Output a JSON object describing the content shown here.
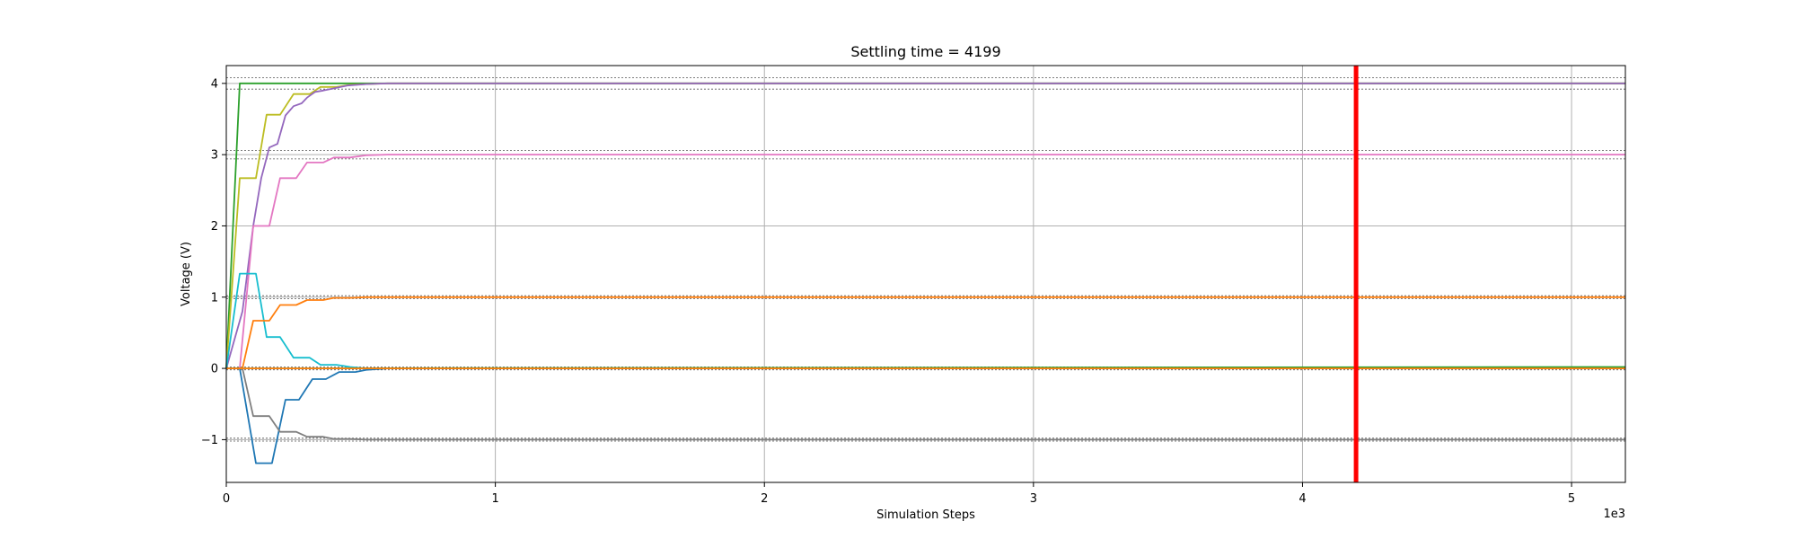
{
  "chart_data": {
    "type": "line",
    "title": "Settling time = 4199",
    "xlabel": "Simulation Steps",
    "ylabel": "Voltage (V)",
    "x_offset_label": "1e3",
    "xlim": [
      0,
      5200
    ],
    "ylim": [
      -1.6,
      4.25
    ],
    "xticks": [
      0,
      1000,
      2000,
      3000,
      4000,
      5000
    ],
    "xtick_labels": [
      "0",
      "1",
      "2",
      "3",
      "4",
      "5"
    ],
    "yticks": [
      -1,
      0,
      1,
      2,
      3,
      4
    ],
    "ytick_labels": [
      "−1",
      "0",
      "1",
      "2",
      "3",
      "4"
    ],
    "grid": true,
    "settling_time": 4199,
    "marker_color": "#ff0000",
    "tolerance_bands": [
      {
        "target": 4,
        "lower": 3.92,
        "upper": 4.08
      },
      {
        "target": 3,
        "lower": 2.94,
        "upper": 3.06
      },
      {
        "target": 1,
        "lower": 0.98,
        "upper": 1.02
      },
      {
        "target": 0,
        "lower": -0.02,
        "upper": 0.02
      },
      {
        "target": -1,
        "lower": -1.02,
        "upper": -0.98
      }
    ],
    "series": [
      {
        "color": "#2ca02c",
        "x": [
          0,
          50,
          5200
        ],
        "y": [
          0,
          4.0,
          4.0
        ]
      },
      {
        "color": "#bcbd22",
        "x": [
          0,
          50,
          110,
          150,
          200,
          250,
          310,
          350,
          410,
          460,
          520,
          600,
          5200
        ],
        "y": [
          0,
          2.67,
          2.67,
          3.56,
          3.56,
          3.85,
          3.85,
          3.95,
          3.95,
          3.98,
          3.99,
          4.0,
          4.0
        ]
      },
      {
        "color": "#9467bd",
        "x": [
          0,
          60,
          100,
          130,
          160,
          190,
          220,
          250,
          280,
          300,
          330,
          360,
          400,
          450,
          520,
          600,
          5200
        ],
        "y": [
          0,
          0.8,
          2.0,
          2.67,
          3.1,
          3.15,
          3.55,
          3.68,
          3.72,
          3.8,
          3.88,
          3.9,
          3.93,
          3.97,
          3.99,
          4.0,
          4.0
        ]
      },
      {
        "color": "#e377c2",
        "x": [
          0,
          50,
          100,
          160,
          200,
          260,
          300,
          360,
          400,
          460,
          520,
          600,
          5200
        ],
        "y": [
          0,
          0,
          2.0,
          2.0,
          2.67,
          2.67,
          2.89,
          2.89,
          2.96,
          2.96,
          2.99,
          3.0,
          3.0
        ]
      },
      {
        "color": "#17becf",
        "x": [
          0,
          50,
          110,
          150,
          200,
          250,
          310,
          350,
          410,
          460,
          520,
          600,
          5200
        ],
        "y": [
          0,
          1.33,
          1.33,
          0.44,
          0.44,
          0.15,
          0.15,
          0.05,
          0.05,
          0.02,
          0.0,
          0.0,
          0.0
        ]
      },
      {
        "color": "#ff7f0e",
        "x": [
          0,
          60,
          100,
          160,
          200,
          260,
          300,
          360,
          400,
          460,
          520,
          600,
          5200
        ],
        "y": [
          0,
          0,
          0.67,
          0.67,
          0.89,
          0.89,
          0.96,
          0.96,
          0.99,
          0.99,
          1.0,
          1.0,
          1.0
        ]
      },
      {
        "color": "#1f77b4",
        "x": [
          0,
          50,
          110,
          170,
          220,
          270,
          320,
          370,
          420,
          480,
          520,
          600,
          5200
        ],
        "y": [
          0,
          0,
          -1.33,
          -1.33,
          -0.44,
          -0.44,
          -0.15,
          -0.15,
          -0.05,
          -0.05,
          -0.02,
          0.0,
          0.0
        ]
      },
      {
        "color": "#7f7f7f",
        "x": [
          0,
          60,
          100,
          160,
          200,
          260,
          300,
          360,
          400,
          460,
          520,
          600,
          5200
        ],
        "y": [
          0,
          0,
          -0.67,
          -0.67,
          -0.89,
          -0.89,
          -0.96,
          -0.96,
          -0.99,
          -0.99,
          -1.0,
          -1.0,
          -1.0
        ]
      },
      {
        "color": "#2ca02c",
        "x": [
          0,
          5200
        ],
        "y": [
          0.0,
          0.02
        ]
      },
      {
        "color": "#ff7f0e",
        "x": [
          0,
          5200
        ],
        "y": [
          0.0,
          0.0
        ]
      }
    ]
  }
}
